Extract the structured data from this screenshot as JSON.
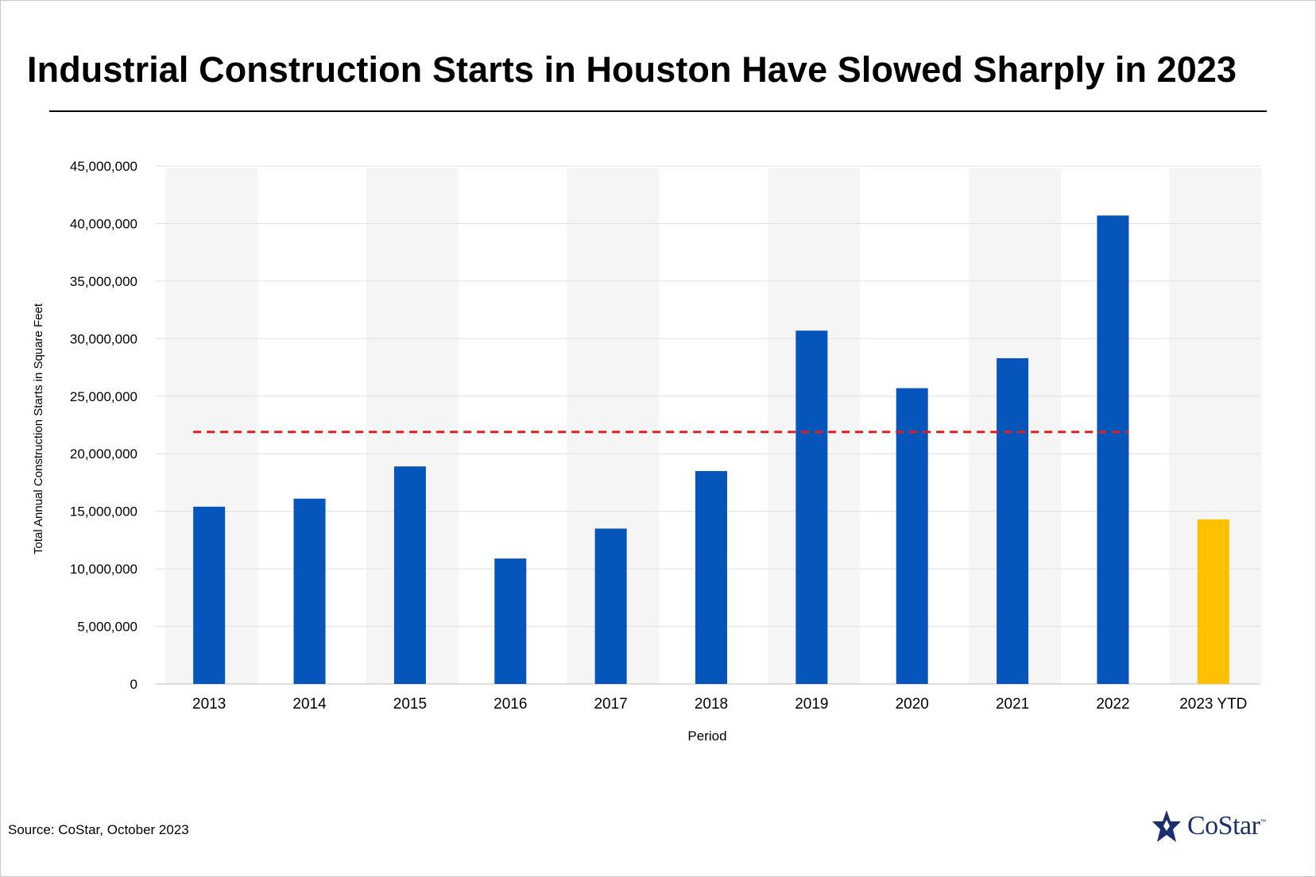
{
  "chart_data": {
    "type": "bar",
    "title": "Industrial Construction Starts in Houston Have Slowed Sharply in 2023",
    "xlabel": "Period",
    "ylabel": "Total Annual Construction Starts in Square Feet",
    "ylim": [
      0,
      45000000
    ],
    "yticks": [
      "0",
      "5,000,000",
      "10,000,000",
      "15,000,000",
      "20,000,000",
      "25,000,000",
      "30,000,000",
      "35,000,000",
      "40,000,000",
      "45,000,000"
    ],
    "categories": [
      "2013",
      "2014",
      "2015",
      "2016",
      "2017",
      "2018",
      "2019",
      "2020",
      "2021",
      "2022",
      "2023 YTD"
    ],
    "values": [
      15400000,
      16100000,
      18900000,
      10900000,
      13500000,
      18500000,
      30700000,
      25700000,
      28300000,
      40700000,
      14300000
    ],
    "bar_colors": [
      "#0555bb",
      "#0555bb",
      "#0555bb",
      "#0555bb",
      "#0555bb",
      "#0555bb",
      "#0555bb",
      "#0555bb",
      "#0555bb",
      "#0555bb",
      "#ffc000"
    ],
    "reference_line": {
      "value": 21900000,
      "color": "#e02020",
      "style": "dashed"
    },
    "grid": true,
    "legend": "none"
  },
  "source": "Source: CoStar, October 2023",
  "logo": {
    "text": "CoStar",
    "tm": "™",
    "color": "#1a2f6b"
  }
}
